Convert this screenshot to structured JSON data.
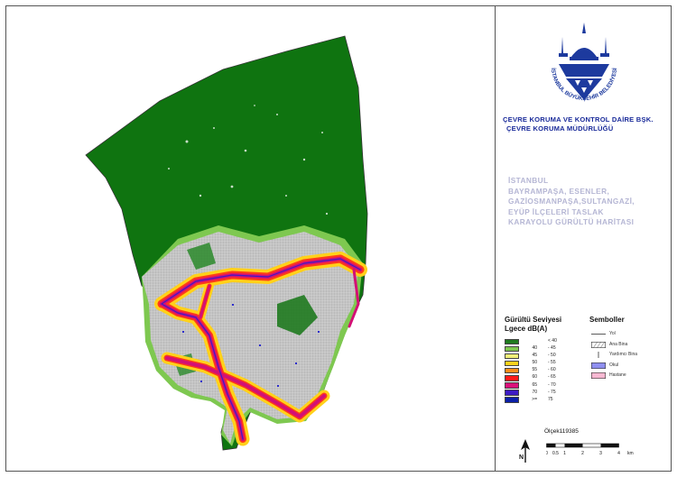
{
  "organization": {
    "logo_text": "İSTANBUL BÜYÜKŞEHİR BELEDİYESİ",
    "department_line1": "ÇEVRE KORUMA VE KONTROL DAİRE BŞK.",
    "department_line2": "ÇEVRE KORUMA  MÜDÜRLÜĞÜ"
  },
  "title_lines": [
    "İSTANBUL",
    "BAYRAMPAŞA, ESENLER,",
    "GAZİOSMANPAŞA,SULTANGAZİ,",
    "EYÜP İLÇELERİ TASLAK",
    "KARAYOLU GÜRÜLTÜ HARİTASI"
  ],
  "noise_legend": {
    "title_line1": "Gürültü Seviyesi",
    "title_line2": "Lgece dB(A)",
    "classes": [
      {
        "lo": "",
        "hi": "< 40",
        "color": "#1f7a1f"
      },
      {
        "lo": "40",
        "hi": "- 45",
        "color": "#7ec850"
      },
      {
        "lo": "45",
        "hi": "- 50",
        "color": "#f2f07a"
      },
      {
        "lo": "50",
        "hi": "- 55",
        "color": "#ffd11a"
      },
      {
        "lo": "55",
        "hi": "- 60",
        "color": "#ff8c1a"
      },
      {
        "lo": "60",
        "hi": "- 65",
        "color": "#ff1a1a"
      },
      {
        "lo": "65",
        "hi": "- 70",
        "color": "#d9127a"
      },
      {
        "lo": "70",
        "hi": "- 75",
        "color": "#3d1bc4"
      },
      {
        "lo": ">=",
        "hi": "75",
        "color": "#0b1fa8"
      }
    ]
  },
  "symbols_legend": {
    "title": "Semboller",
    "items": [
      {
        "label": "Yol",
        "kind": "line"
      },
      {
        "label": "Ana Bina",
        "kind": "hatch"
      },
      {
        "label": "Yardımcı Bina",
        "kind": "tick"
      },
      {
        "label": "Okul",
        "kind": "fill",
        "color": "#8f8ff0"
      },
      {
        "label": "Hastane",
        "kind": "fill",
        "color": "#f7b8d2"
      }
    ]
  },
  "scale": {
    "label": "Ölçek119385",
    "ticks": [
      "0",
      "0.5",
      "1",
      "2",
      "3",
      "4"
    ],
    "unit": "km"
  },
  "north_label": "N",
  "colors": {
    "forest": "#0f7410",
    "urban": "#bfbfbf",
    "road_core": "#d31075",
    "road_glow": "#ff1a1a",
    "dept_text": "#1a2b9a",
    "title_text": "#b5b6d4"
  }
}
